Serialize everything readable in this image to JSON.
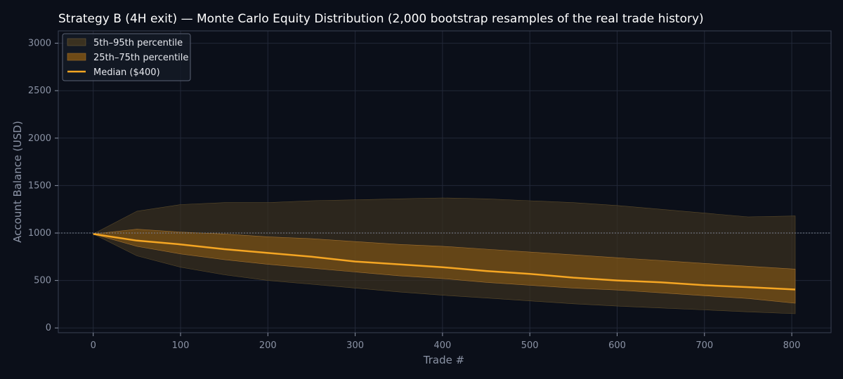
{
  "chart_data": {
    "type": "area",
    "title": "Strategy B (4H exit) — Monte Carlo Equity Distribution (2,000 bootstrap resamples of the real trade history)",
    "xlabel": "Trade #",
    "ylabel": "Account Balance (USD)",
    "xlim": [
      -40,
      845
    ],
    "ylim": [
      -50,
      3130
    ],
    "xticks": [
      0,
      100,
      200,
      300,
      400,
      500,
      600,
      700,
      800
    ],
    "yticks": [
      0,
      500,
      1000,
      1500,
      2000,
      2500,
      3000
    ],
    "grid": true,
    "legend_position": "top-left",
    "reference_line": 1000,
    "x": [
      0,
      50,
      100,
      150,
      200,
      250,
      300,
      350,
      400,
      450,
      500,
      550,
      600,
      650,
      700,
      750,
      804
    ],
    "series": [
      {
        "name": "5th–95th percentile",
        "kind": "band",
        "color": "#3a3120",
        "lower": [
          990,
          760,
          640,
          560,
          500,
          460,
          420,
          380,
          345,
          315,
          285,
          255,
          230,
          210,
          190,
          170,
          150
        ],
        "upper": [
          990,
          1230,
          1300,
          1320,
          1320,
          1340,
          1350,
          1360,
          1370,
          1360,
          1340,
          1320,
          1290,
          1250,
          1210,
          1170,
          1180
        ]
      },
      {
        "name": "25th–75th percentile",
        "kind": "band",
        "color": "#8a5a14",
        "lower": [
          990,
          860,
          780,
          720,
          670,
          630,
          590,
          550,
          520,
          480,
          450,
          420,
          400,
          370,
          340,
          310,
          260
        ],
        "upper": [
          990,
          1040,
          1010,
          990,
          960,
          940,
          910,
          880,
          860,
          830,
          800,
          770,
          740,
          710,
          680,
          650,
          620
        ]
      },
      {
        "name": "Median ($400)",
        "kind": "line",
        "color": "#f5a623",
        "values": [
          990,
          920,
          880,
          830,
          790,
          750,
          700,
          670,
          640,
          600,
          570,
          530,
          500,
          480,
          450,
          430,
          405
        ]
      }
    ]
  }
}
